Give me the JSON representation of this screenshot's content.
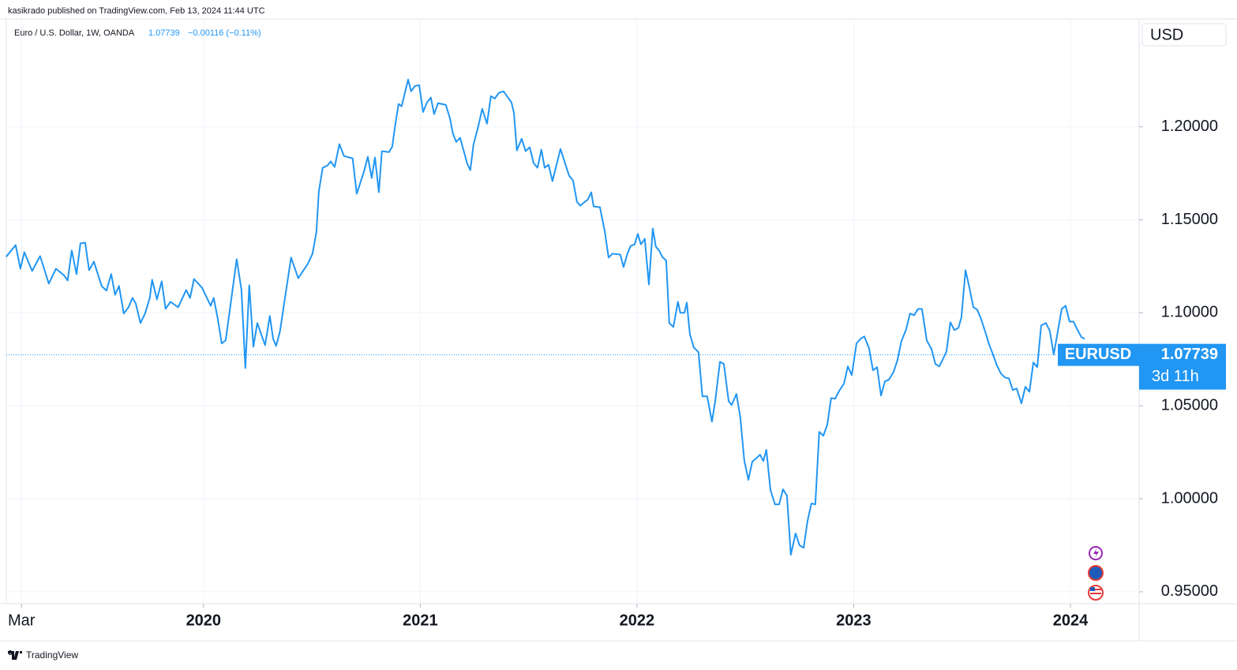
{
  "header": {
    "publisher": "kasikrado published on TradingView.com, Feb 13, 2024 11:44 UTC",
    "symbol": "Euro / U.S. Dollar, 1W, OANDA",
    "change": "−0.00116 (−0.11%)",
    "brand": "TradingView"
  },
  "chart_data": {
    "type": "line",
    "currency": "USD",
    "last_price": 1.07739,
    "countdown": "3d 11h",
    "grid": true,
    "xlim": [
      2019.09,
      2024.317
    ],
    "xticks": [
      {
        "value": 2019.16,
        "label": "Mar"
      },
      2020,
      2021,
      2022,
      2023,
      2024
    ],
    "ylim": [
      0.9436,
      1.258
    ],
    "yticks": [
      {
        "value": 0.95,
        "label": "0.95000"
      },
      {
        "value": 1.0,
        "label": "1.00000"
      },
      {
        "value": 1.05,
        "label": "1.05000"
      },
      {
        "value": 1.1,
        "label": "1.10000"
      },
      {
        "value": 1.15,
        "label": "1.15000"
      },
      {
        "value": 1.2,
        "label": "1.20000"
      }
    ],
    "x": [
      2019.089,
      2019.133,
      2019.155,
      2019.173,
      2019.209,
      2019.246,
      2019.286,
      2019.319,
      2019.355,
      2019.373,
      2019.392,
      2019.414,
      2019.432,
      2019.454,
      2019.472,
      2019.494,
      2019.53,
      2019.552,
      2019.574,
      2019.592,
      2019.61,
      2019.632,
      2019.654,
      2019.672,
      2019.687,
      2019.709,
      2019.73,
      2019.752,
      2019.763,
      2019.785,
      2019.807,
      2019.825,
      2019.847,
      2019.883,
      2019.92,
      2019.938,
      2019.956,
      2019.993,
      2020.033,
      2020.047,
      2020.066,
      2020.084,
      2020.102,
      2020.12,
      2020.153,
      2020.175,
      2020.193,
      2020.211,
      2020.23,
      2020.248,
      2020.284,
      2020.306,
      2020.321,
      2020.335,
      2020.353,
      2020.372,
      2020.404,
      2020.437,
      2020.481,
      2020.503,
      2020.521,
      2020.532,
      2020.55,
      2020.572,
      2020.587,
      2020.605,
      2020.627,
      2020.648,
      2020.688,
      2020.707,
      2020.74,
      2020.758,
      2020.776,
      2020.791,
      2020.809,
      2020.823,
      2020.856,
      2020.871,
      2020.882,
      2020.9,
      2020.914,
      2020.944,
      2020.958,
      2020.976,
      2020.995,
      2021.013,
      2021.031,
      2021.049,
      2021.064,
      2021.082,
      2021.118,
      2021.137,
      2021.151,
      2021.166,
      2021.184,
      2021.217,
      2021.231,
      2021.246,
      2021.268,
      2021.286,
      2021.308,
      2021.326,
      2021.344,
      2021.362,
      2021.384,
      2021.421,
      2021.432,
      2021.446,
      2021.468,
      2021.486,
      2021.505,
      2021.523,
      2021.541,
      2021.559,
      2021.574,
      2021.592,
      2021.61,
      2021.647,
      2021.668,
      2021.687,
      2021.705,
      2021.723,
      2021.738,
      2021.774,
      2021.789,
      2021.8,
      2021.829,
      2021.851,
      2021.869,
      2021.887,
      2021.923,
      2021.938,
      2021.956,
      2021.971,
      2021.989,
      2022.004,
      2022.018,
      2022.036,
      2022.055,
      2022.073,
      2022.087,
      2022.102,
      2022.117,
      2022.135,
      2022.149,
      2022.168,
      2022.189,
      2022.2,
      2022.219,
      2022.23,
      2022.244,
      2022.262,
      2022.284,
      2022.302,
      2022.324,
      2022.346,
      2022.361,
      2022.383,
      2022.401,
      2022.423,
      2022.437,
      2022.459,
      2022.477,
      2022.495,
      2022.514,
      2022.532,
      2022.568,
      2022.583,
      2022.597,
      2022.616,
      2022.637,
      2022.656,
      2022.674,
      2022.692,
      2022.71,
      2022.732,
      2022.75,
      2022.769,
      2022.787,
      2022.805,
      2022.823,
      2022.841,
      2022.86,
      2022.878,
      2022.896,
      2022.914,
      2022.933,
      2022.955,
      2022.973,
      2022.991,
      2023.013,
      2023.031,
      2023.049,
      2023.071,
      2023.089,
      2023.108,
      2023.126,
      2023.144,
      2023.162,
      2023.184,
      2023.202,
      2023.22,
      2023.242,
      2023.26,
      2023.279,
      2023.297,
      2023.315,
      2023.337,
      2023.359,
      2023.377,
      2023.395,
      2023.413,
      2023.428,
      2023.446,
      2023.465,
      2023.483,
      2023.497,
      2023.516,
      2023.534,
      2023.552,
      2023.57,
      2023.588,
      2023.607,
      2023.625,
      2023.643,
      2023.661,
      2023.679,
      2023.698,
      2023.716,
      2023.734,
      2023.752,
      2023.774,
      2023.792,
      2023.811,
      2023.829,
      2023.847,
      2023.865,
      2023.887,
      2023.905,
      2023.923,
      2023.942,
      2023.96,
      2023.978,
      2023.996,
      2024.014,
      2024.033,
      2024.051,
      2024.066
    ],
    "series": [
      {
        "name": "EURUSD",
        "color": "#2196f3",
        "values": [
          1.1301,
          1.1364,
          1.1237,
          1.1326,
          1.1225,
          1.1305,
          1.1157,
          1.1237,
          1.1203,
          1.1174,
          1.1335,
          1.1208,
          1.1373,
          1.1377,
          1.1229,
          1.1275,
          1.1144,
          1.1119,
          1.1208,
          1.1097,
          1.1144,
          1.0996,
          1.103,
          1.108,
          1.1051,
          1.0945,
          1.0996,
          1.108,
          1.1178,
          1.1072,
          1.1169,
          1.1021,
          1.1059,
          1.103,
          1.1123,
          1.108,
          1.1182,
          1.1135,
          1.1038,
          1.108,
          1.0966,
          1.0835,
          1.0852,
          1.1004,
          1.1288,
          1.1123,
          1.0703,
          1.1148,
          1.0818,
          1.0945,
          1.0826,
          1.0983,
          1.086,
          1.0822,
          1.0902,
          1.1051,
          1.1297,
          1.1186,
          1.1263,
          1.1318,
          1.1436,
          1.1653,
          1.178,
          1.1792,
          1.1814,
          1.1784,
          1.1907,
          1.1843,
          1.183,
          1.164,
          1.1758,
          1.1839,
          1.1725,
          1.1835,
          1.1648,
          1.1869,
          1.1864,
          1.1894,
          1.1991,
          1.2123,
          1.211,
          1.2254,
          1.2191,
          1.222,
          1.2224,
          1.208,
          1.2131,
          1.2157,
          1.2068,
          1.2127,
          1.2118,
          1.2046,
          1.1962,
          1.1919,
          1.1941,
          1.1801,
          1.1767,
          1.1907,
          1.2004,
          1.2097,
          1.2017,
          1.2165,
          1.2152,
          1.2182,
          1.2191,
          1.2131,
          1.2076,
          1.1873,
          1.1936,
          1.1869,
          1.189,
          1.1805,
          1.178,
          1.1877,
          1.178,
          1.1796,
          1.1708,
          1.1881,
          1.1805,
          1.1737,
          1.1712,
          1.1597,
          1.1576,
          1.161,
          1.1648,
          1.1572,
          1.1568,
          1.1441,
          1.1297,
          1.1318,
          1.1313,
          1.1246,
          1.1318,
          1.136,
          1.1368,
          1.1424,
          1.1368,
          1.1398,
          1.1152,
          1.1453,
          1.1356,
          1.1335,
          1.1301,
          1.128,
          1.0945,
          1.0924,
          1.1059,
          1.1,
          1.1,
          1.1055,
          1.0886,
          1.0814,
          1.0788,
          1.0551,
          1.0551,
          1.0415,
          1.0525,
          1.0737,
          1.0725,
          1.0525,
          1.0504,
          1.0564,
          1.0436,
          1.0208,
          1.0102,
          1.0199,
          1.0237,
          1.0203,
          1.0263,
          1.0047,
          0.997,
          0.997,
          1.0051,
          1.0017,
          0.9699,
          0.9814,
          0.975,
          0.9737,
          0.9881,
          0.9975,
          0.997,
          1.036,
          1.0339,
          1.0398,
          1.0542,
          1.0538,
          1.058,
          1.0619,
          1.0712,
          1.0665,
          1.0835,
          1.086,
          1.0873,
          1.0809,
          1.0691,
          1.0708,
          1.0555,
          1.0631,
          1.064,
          1.0682,
          1.0746,
          1.0847,
          1.0911,
          1.0996,
          1.0987,
          1.1021,
          1.1021,
          1.0852,
          1.0805,
          1.0725,
          1.0712,
          1.0754,
          1.0792,
          1.0949,
          1.0907,
          1.0919,
          1.0975,
          1.1229,
          1.1135,
          1.103,
          1.1017,
          1.0966,
          1.0898,
          1.083,
          1.0775,
          1.0716,
          1.0674,
          1.0652,
          1.0648,
          1.0585,
          1.0593,
          1.0513,
          1.0602,
          1.0576,
          1.0733,
          1.0708,
          1.0932,
          1.0945,
          1.0902,
          1.0775,
          1.0902,
          1.1021,
          1.1038,
          1.0953,
          1.0953,
          1.0907,
          1.0869,
          1.086
        ]
      }
    ]
  }
}
